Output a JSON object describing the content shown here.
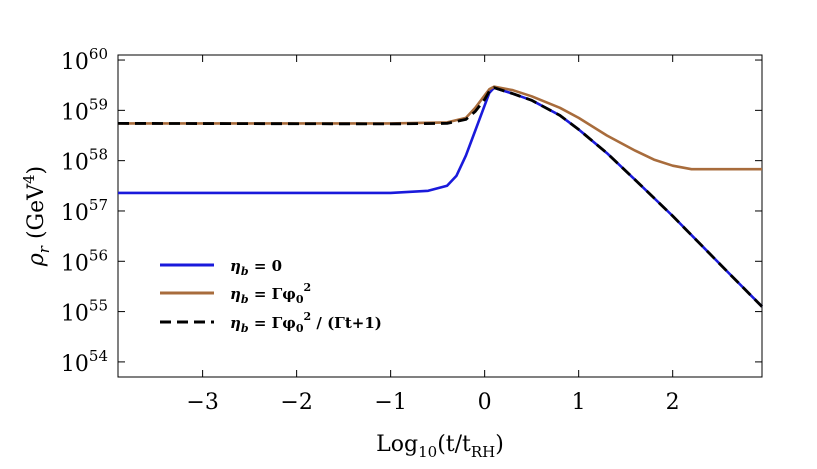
{
  "chart_data": {
    "type": "line",
    "xlabel": {
      "base": "Log",
      "sub": "10",
      "text": "(t/t",
      "sub2": "RH",
      "close": ")"
    },
    "ylabel": {
      "rho": "ρ",
      "sub": "r",
      "unit": " (GeV",
      "sup": "4",
      "close": ")"
    },
    "xlim": [
      -3.9,
      2.95
    ],
    "ylim": [
      53.7,
      60.1
    ],
    "yscale": "log",
    "grid": false,
    "legend_position": "lower-left",
    "x_ticks": [
      {
        "value": -3,
        "label": "−3"
      },
      {
        "value": -2,
        "label": "−2"
      },
      {
        "value": -1,
        "label": "−1"
      },
      {
        "value": 0,
        "label": "0"
      },
      {
        "value": 1,
        "label": "1"
      },
      {
        "value": 2,
        "label": "2"
      }
    ],
    "y_ticks": [
      {
        "value": 54,
        "base": "10",
        "exp": "54"
      },
      {
        "value": 55,
        "base": "10",
        "exp": "55"
      },
      {
        "value": 56,
        "base": "10",
        "exp": "56"
      },
      {
        "value": 57,
        "base": "10",
        "exp": "57"
      },
      {
        "value": 58,
        "base": "10",
        "exp": "58"
      },
      {
        "value": 59,
        "base": "10",
        "exp": "59"
      },
      {
        "value": 60,
        "base": "10",
        "exp": "60"
      }
    ],
    "series": [
      {
        "name": "η_b = 0",
        "legend": {
          "eta": "η",
          "sub": "b",
          "rest": " = 0"
        },
        "color": "#1a1adb",
        "dash": "solid",
        "x": [
          -3.9,
          -1.0,
          -0.6,
          -0.4,
          -0.3,
          -0.2,
          -0.1,
          0.0,
          0.05,
          0.1,
          0.3,
          0.5,
          0.8,
          1.0,
          1.3,
          1.6,
          2.0,
          2.3,
          2.6,
          2.95
        ],
        "y": [
          57.36,
          57.36,
          57.4,
          57.5,
          57.7,
          58.1,
          58.6,
          59.1,
          59.35,
          59.45,
          59.33,
          59.2,
          58.9,
          58.62,
          58.15,
          57.62,
          56.9,
          56.33,
          55.76,
          55.1
        ]
      },
      {
        "name": "η_b = Γφ0^2",
        "legend": {
          "eta": "η",
          "sub": "b",
          "rest": " = Γφ",
          "sub2": "0",
          "sup": "2"
        },
        "color": "#a86c3c",
        "dash": "solid",
        "x": [
          -3.9,
          -1.0,
          -0.4,
          -0.2,
          -0.1,
          0.0,
          0.05,
          0.1,
          0.3,
          0.5,
          0.8,
          1.0,
          1.3,
          1.6,
          1.8,
          2.0,
          2.2,
          2.95
        ],
        "y": [
          58.74,
          58.74,
          58.76,
          58.85,
          59.05,
          59.3,
          59.42,
          59.47,
          59.4,
          59.28,
          59.05,
          58.85,
          58.5,
          58.2,
          58.02,
          57.9,
          57.83,
          57.83
        ]
      },
      {
        "name": "η_b = Γφ0^2 / (Γt+1)",
        "legend": {
          "eta": "η",
          "sub": "b",
          "rest": " = Γφ",
          "sub2": "0",
          "sup": "2",
          "tail": " / (Γt+1)"
        },
        "color": "#000000",
        "dash": "dashed",
        "x": [
          -3.9,
          -1.0,
          -0.4,
          -0.2,
          -0.1,
          0.0,
          0.05,
          0.1,
          0.3,
          0.5,
          0.8,
          1.0,
          1.3,
          1.6,
          2.0,
          2.3,
          2.6,
          2.95
        ],
        "y": [
          58.74,
          58.73,
          58.74,
          58.82,
          58.98,
          59.22,
          59.38,
          59.45,
          59.33,
          59.2,
          58.9,
          58.62,
          58.15,
          57.62,
          56.9,
          56.33,
          55.76,
          55.1
        ]
      }
    ]
  }
}
